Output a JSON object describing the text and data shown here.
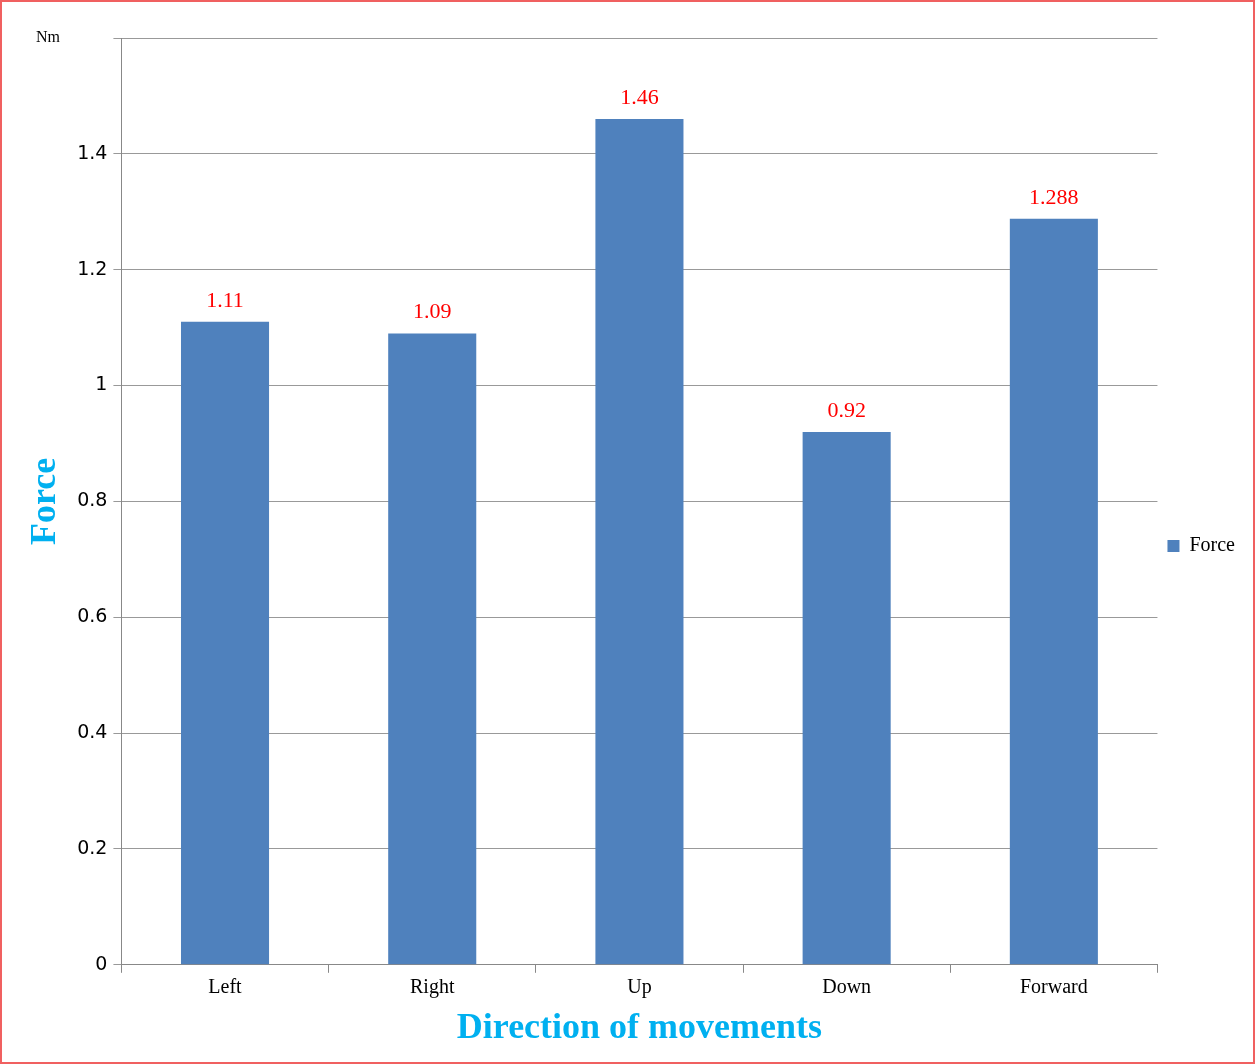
{
  "chart_data": {
    "type": "bar",
    "xlabel": "Direction of movements",
    "ylabel": "Force",
    "annotations": [
      "Nm"
    ],
    "categories": [
      "Left",
      "Right",
      "Up",
      "Down",
      "Forward"
    ],
    "series": [
      {
        "name": "Force",
        "color": "#4f81bd",
        "values": [
          1.11,
          1.09,
          1.46,
          0.92,
          1.288
        ]
      }
    ],
    "ylim": [
      0,
      1.6
    ],
    "yticks": [
      0,
      0.2,
      0.4,
      0.6,
      0.8,
      1,
      1.2,
      1.4,
      {
        "value": 1.6,
        "label": null
      }
    ],
    "grid": "y",
    "legend": "right",
    "data_labels": true
  }
}
